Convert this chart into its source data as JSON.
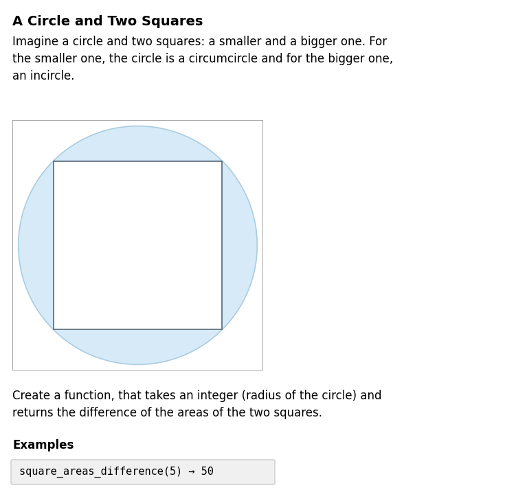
{
  "background_color": "#ffffff",
  "title_text": "A Circle and Two Squares",
  "title_fontsize": 14,
  "desc_text": "Imagine a circle and two squares: a smaller and a bigger one. For\nthe smaller one, the circle is a circumcircle and for the bigger one,\nan incircle.",
  "desc_fontsize": 12,
  "body_text": "Create a function, that takes an integer (radius of the circle) and\nreturns the difference of the areas of the two squares.",
  "body_fontsize": 12,
  "examples_label": "Examples",
  "examples_fontsize": 12,
  "code_text": "square_areas_difference(5) → 50",
  "code_fontsize": 11,
  "code_bg": "#f0f0f0",
  "code_border": "#cccccc",
  "circle_fill": "#d6eaf8",
  "circle_border": "#aacde0",
  "inner_square_fill": "#ffffff",
  "inner_square_border": "#556677",
  "outer_square_fill": "#ffffff",
  "outer_square_border": "#999999",
  "font_family": "DejaVu Sans"
}
